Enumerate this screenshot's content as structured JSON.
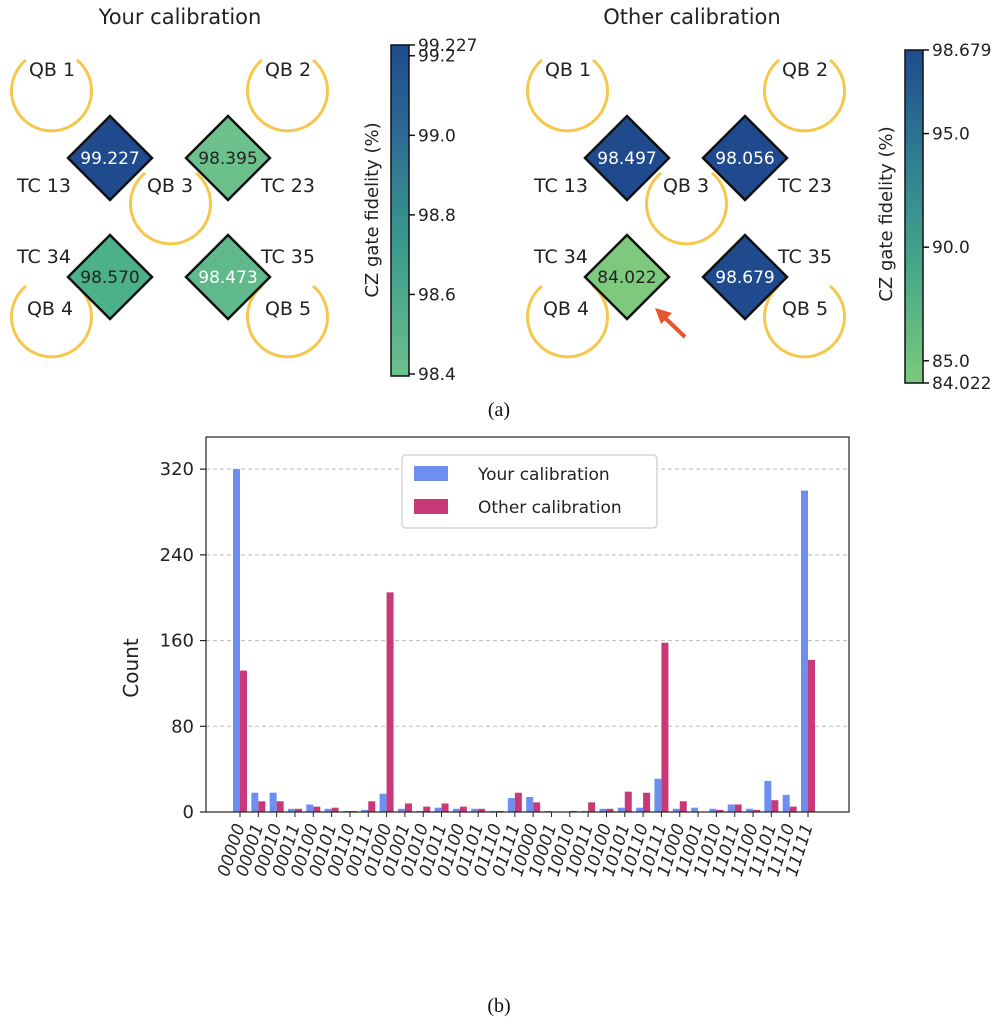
{
  "panel_a": {
    "caption": "(a)",
    "left": {
      "title": "Your calibration",
      "qubits": [
        "QB 1",
        "QB 2",
        "QB 3",
        "QB 4",
        "QB 5"
      ],
      "couplers": [
        {
          "label": "TC 13",
          "value": "99.227",
          "color": "#1f4b8e"
        },
        {
          "label": "TC 23",
          "value": "98.395",
          "color": "#6cc08b"
        },
        {
          "label": "TC 34",
          "value": "98.570",
          "color": "#4cb08b"
        },
        {
          "label": "TC 35",
          "value": "98.473",
          "color": "#5fb98a"
        }
      ],
      "colorbar": {
        "label": "CZ gate fidelity (%)",
        "ticks": [
          "99.227",
          "99.2",
          "99.0",
          "98.8",
          "98.6",
          "98.4"
        ],
        "tick_values": [
          99.227,
          99.2,
          99.0,
          98.8,
          98.6,
          98.4
        ],
        "range": [
          98.395,
          99.227
        ]
      }
    },
    "right": {
      "title": "Other calibration",
      "qubits": [
        "QB 1",
        "QB 2",
        "QB 3",
        "QB 4",
        "QB 5"
      ],
      "couplers": [
        {
          "label": "TC 13",
          "value": "98.497",
          "color": "#1f4b8e"
        },
        {
          "label": "TC 23",
          "value": "98.056",
          "color": "#1f4b8e"
        },
        {
          "label": "TC 34",
          "value": "84.022",
          "color": "#7dc97e"
        },
        {
          "label": "TC 35",
          "value": "98.679",
          "color": "#1f4b8e"
        }
      ],
      "colorbar": {
        "label": "CZ gate fidelity (%)",
        "ticks": [
          "98.679",
          "95.0",
          "90.0",
          "85.0",
          "84.022"
        ],
        "tick_values": [
          98.679,
          95.0,
          90.0,
          85.0,
          84.022
        ],
        "range": [
          84.022,
          98.679
        ]
      }
    },
    "colors": {
      "qubit_ring": "#f5c84c",
      "arrow": "#e8542c",
      "cb_top": "#1f4b8e",
      "cb_mid": "#2e8f8c",
      "cb_bottom": "#7dc97e"
    }
  },
  "chart_data": {
    "type": "bar",
    "caption": "(b)",
    "ylabel": "Count",
    "xlabel": "",
    "ylim": [
      0,
      350
    ],
    "yticks": [
      0,
      80,
      160,
      240,
      320
    ],
    "grid": "horizontal dashed",
    "legend_position": "top-center",
    "categories": [
      "00000",
      "00001",
      "00010",
      "00011",
      "00100",
      "00101",
      "00110",
      "00111",
      "01000",
      "01001",
      "01010",
      "01011",
      "01100",
      "01101",
      "01110",
      "01111",
      "10000",
      "10001",
      "10010",
      "10011",
      "10100",
      "10101",
      "10110",
      "10111",
      "11000",
      "11001",
      "11010",
      "11011",
      "11100",
      "11101",
      "11110",
      "11111"
    ],
    "series": [
      {
        "name": "Your calibration",
        "color": "#6d8ff0",
        "values": [
          320,
          18,
          18,
          3,
          7,
          3,
          1,
          2,
          17,
          3,
          1,
          4,
          3,
          3,
          1,
          13,
          14,
          1,
          0,
          1,
          3,
          4,
          4,
          31,
          3,
          4,
          3,
          7,
          3,
          29,
          16,
          300
        ]
      },
      {
        "name": "Other calibration",
        "color": "#c9397a",
        "values": [
          132,
          10,
          10,
          3,
          5,
          4,
          1,
          10,
          205,
          8,
          5,
          8,
          5,
          3,
          1,
          18,
          9,
          0,
          1,
          9,
          3,
          19,
          18,
          158,
          10,
          0,
          2,
          7,
          2,
          11,
          5,
          142
        ]
      }
    ]
  }
}
